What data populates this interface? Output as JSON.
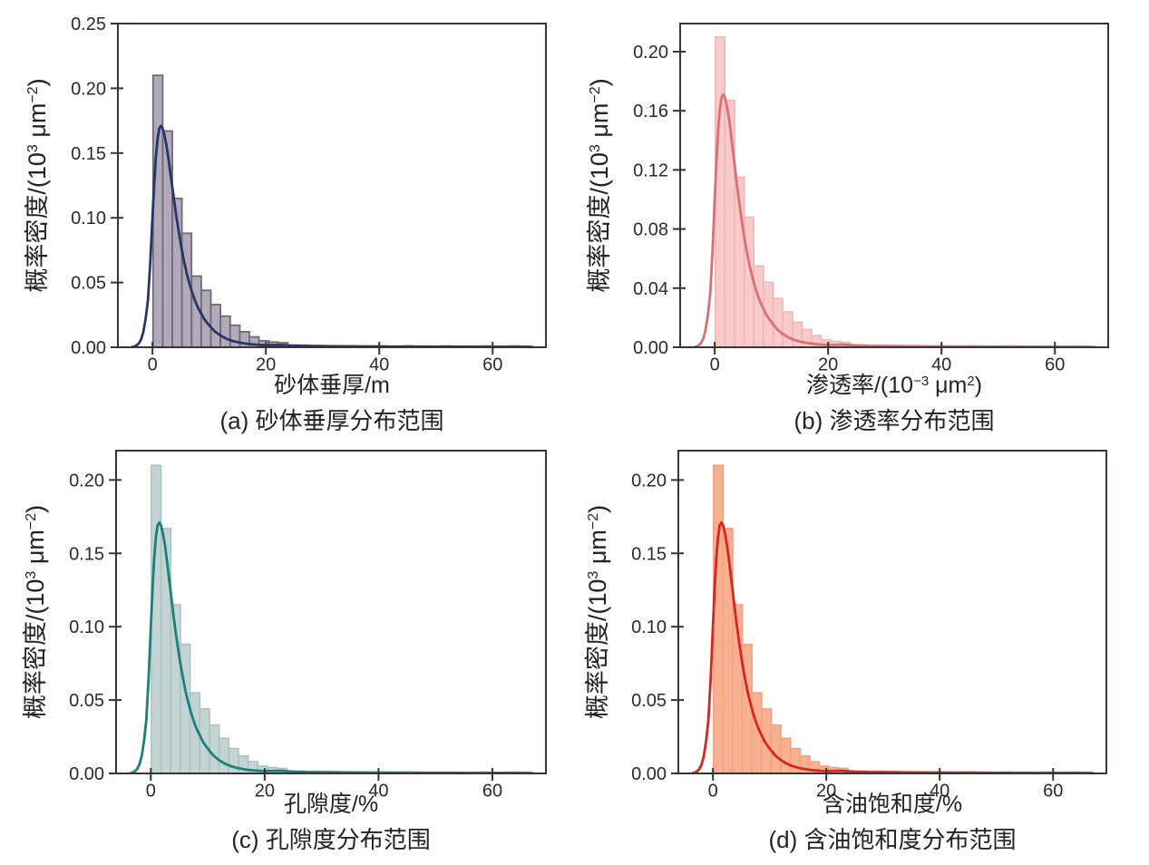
{
  "figure": {
    "background": "#ffffff",
    "axis_color": "#3a3432",
    "text_color": "#272221",
    "tick_label_color": "#2e2a28"
  },
  "shared_distribution": {
    "note": "All four panels display the same normalized right-skewed distribution shape (histogram with kernel density curve).",
    "bins": {
      "start": 0.1,
      "width": 1.7,
      "heights": [
        0.21,
        0.167,
        0.115,
        0.088,
        0.055,
        0.044,
        0.033,
        0.024,
        0.017,
        0.012,
        0.008,
        0.005,
        0.004,
        0.0034,
        0.0014,
        0.0016,
        0.0012,
        0.001,
        0.001,
        0.0008,
        0.001,
        0.0008,
        0.0008,
        0.001,
        0.0008,
        0.0008,
        0.001,
        0.0008,
        0.0008,
        0.0008,
        0.001,
        0.0008,
        0.0008,
        0.0008,
        0.001,
        0.0008,
        0.0008,
        0.001,
        0.0008
      ]
    },
    "kde": [
      [
        -3.6,
        0.0002
      ],
      [
        -3.2,
        0.0005
      ],
      [
        -2.8,
        0.0015
      ],
      [
        -2.4,
        0.003
      ],
      [
        -2.0,
        0.006
      ],
      [
        -1.6,
        0.012
      ],
      [
        -1.2,
        0.022
      ],
      [
        -0.8,
        0.036
      ],
      [
        -0.4,
        0.064
      ],
      [
        0,
        0.1
      ],
      [
        0.3,
        0.126
      ],
      [
        0.6,
        0.147
      ],
      [
        0.9,
        0.161
      ],
      [
        1.2,
        0.169
      ],
      [
        1.5,
        0.171
      ],
      [
        1.8,
        0.169
      ],
      [
        2.1,
        0.164
      ],
      [
        2.5,
        0.155
      ],
      [
        2.9,
        0.143
      ],
      [
        3.3,
        0.13
      ],
      [
        3.7,
        0.117
      ],
      [
        4.1,
        0.104
      ],
      [
        4.6,
        0.09
      ],
      [
        5.1,
        0.077
      ],
      [
        5.6,
        0.066
      ],
      [
        6.1,
        0.056
      ],
      [
        6.6,
        0.048
      ],
      [
        7.1,
        0.041
      ],
      [
        7.6,
        0.035
      ],
      [
        8.1,
        0.03
      ],
      [
        8.6,
        0.026
      ],
      [
        9.1,
        0.022
      ],
      [
        9.6,
        0.019
      ],
      [
        10.2,
        0.016
      ],
      [
        11,
        0.0122
      ],
      [
        12,
        0.009
      ],
      [
        13,
        0.0067
      ],
      [
        14,
        0.005
      ],
      [
        15,
        0.0039
      ],
      [
        16,
        0.0031
      ],
      [
        17,
        0.0025
      ],
      [
        18,
        0.0021
      ],
      [
        19,
        0.0018
      ],
      [
        20,
        0.0016
      ],
      [
        21,
        0.0016
      ],
      [
        22,
        0.0018
      ],
      [
        23,
        0.0017
      ],
      [
        24,
        0.0014
      ],
      [
        25.5,
        0.0012
      ],
      [
        27,
        0.001
      ],
      [
        29,
        0.0009
      ],
      [
        32,
        0.0008
      ],
      [
        35,
        0.0007
      ],
      [
        38,
        0.0006
      ],
      [
        42,
        0.0005
      ],
      [
        46,
        0.0005
      ],
      [
        50,
        0.0004
      ],
      [
        54,
        0.0004
      ],
      [
        58,
        0.0003
      ],
      [
        62,
        0.0003
      ],
      [
        65,
        0.0003
      ],
      [
        67,
        0.0002
      ]
    ]
  },
  "chart_data": [
    {
      "id": "a",
      "type": "bar",
      "subtype": "histogram+kde",
      "caption": "(a) 砂体垂厚分布范围",
      "xlabel": "砂体垂厚/m",
      "xlabel_parts": [
        {
          "t": "砂体垂厚/m"
        }
      ],
      "ylabel": "概率密度/(10³ μm⁻²)",
      "ylabel_parts": [
        {
          "t": "概率密度/(10"
        },
        {
          "t": "3",
          "sup": true
        },
        {
          "t": " μm"
        },
        {
          "t": "−2",
          "sup": true
        },
        {
          "t": ")"
        }
      ],
      "xlim": [
        -6.1,
        69.4
      ],
      "xticks": [
        "0",
        "20",
        "40",
        "60"
      ],
      "ylim": [
        0,
        0.25
      ],
      "yticks": [
        "0.00",
        "0.05",
        "0.10",
        "0.15",
        "0.20",
        "0.25"
      ],
      "grid": false,
      "legend": null,
      "colors": {
        "bar_fill": "#b2a9bb",
        "bar_edge": "#6f6a73",
        "line": "#263766"
      }
    },
    {
      "id": "b",
      "type": "bar",
      "subtype": "histogram+kde",
      "caption": "(b) 渗透率分布范围",
      "xlabel": "渗透率/(10⁻³ μm²)",
      "xlabel_parts": [
        {
          "t": "渗透率/(10"
        },
        {
          "t": "−3",
          "sup": true
        },
        {
          "t": " μm"
        },
        {
          "t": "2",
          "sup": true
        },
        {
          "t": ")"
        }
      ],
      "ylabel": "概率密度/(10³ μm⁻²)",
      "ylabel_parts": [
        {
          "t": "概率密度/(10"
        },
        {
          "t": "3",
          "sup": true
        },
        {
          "t": " μm"
        },
        {
          "t": "−2",
          "sup": true
        },
        {
          "t": ")"
        }
      ],
      "xlim": [
        -6.1,
        69.4
      ],
      "xticks": [
        "0",
        "20",
        "40",
        "60"
      ],
      "ylim": [
        0,
        0.219
      ],
      "yticks": [
        "0.00",
        "0.04",
        "0.08",
        "0.12",
        "0.16",
        "0.20"
      ],
      "grid": false,
      "legend": null,
      "colors": {
        "bar_fill": "#f8caca",
        "bar_edge": "#f0b3b3",
        "line": "#d97076"
      }
    },
    {
      "id": "c",
      "type": "bar",
      "subtype": "histogram+kde",
      "caption": "(c) 孔隙度分布范围",
      "xlabel": "孔隙度/%",
      "xlabel_parts": [
        {
          "t": "孔隙度/%"
        }
      ],
      "ylabel": "概率密度/(10³ μm⁻²)",
      "ylabel_parts": [
        {
          "t": "概率密度/(10"
        },
        {
          "t": "3",
          "sup": true
        },
        {
          "t": " μm"
        },
        {
          "t": "−2",
          "sup": true
        },
        {
          "t": ")"
        }
      ],
      "xlim": [
        -6.1,
        69.4
      ],
      "xticks": [
        "0",
        "20",
        "40",
        "60"
      ],
      "ylim": [
        0,
        0.22
      ],
      "yticks": [
        "0.00",
        "0.05",
        "0.10",
        "0.15",
        "0.20"
      ],
      "grid": false,
      "legend": null,
      "colors": {
        "bar_fill": "#c4d4d4",
        "bar_edge": "#a8c1c1",
        "line": "#1d8078"
      }
    },
    {
      "id": "d",
      "type": "bar",
      "subtype": "histogram+kde",
      "caption": "(d) 含油饱和度分布范围",
      "xlabel": "含油饱和度/%",
      "xlabel_parts": [
        {
          "t": "含油饱和度/%"
        }
      ],
      "ylabel": "概率密度/(10³ μm⁻²)",
      "ylabel_parts": [
        {
          "t": "概率密度/(10"
        },
        {
          "t": "3",
          "sup": true
        },
        {
          "t": " μm"
        },
        {
          "t": "−2",
          "sup": true
        },
        {
          "t": ")"
        }
      ],
      "xlim": [
        -6.1,
        69.4
      ],
      "xticks": [
        "0",
        "20",
        "40",
        "60"
      ],
      "ylim": [
        0,
        0.22
      ],
      "yticks": [
        "0.00",
        "0.05",
        "0.10",
        "0.15",
        "0.20"
      ],
      "grid": false,
      "legend": null,
      "colors": {
        "bar_fill": "#f7b191",
        "bar_edge": "#f3a07e",
        "line": "#d8251f"
      }
    }
  ]
}
